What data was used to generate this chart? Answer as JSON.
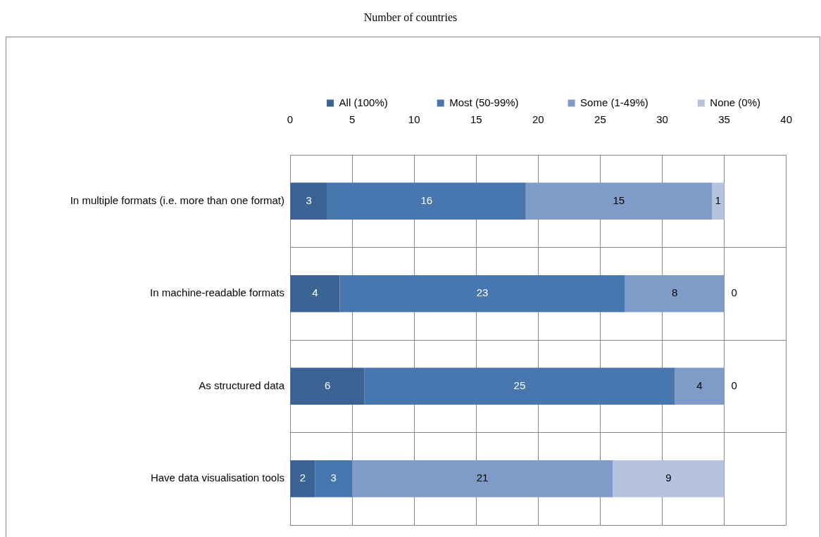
{
  "chart_data": {
    "type": "bar",
    "orientation": "horizontal",
    "stacked": true,
    "title": "Number of countries",
    "categories": [
      "In multiple formats (i.e. more than one format)",
      "In machine-readable formats",
      "As structured data",
      "Have data visualisation tools"
    ],
    "series": [
      {
        "name": "All (100%)",
        "color": "#3b6494",
        "values": [
          3,
          4,
          6,
          2
        ]
      },
      {
        "name": "Most (50-99%)",
        "color": "#4876ae",
        "values": [
          16,
          23,
          25,
          3
        ]
      },
      {
        "name": "Some (1-49%)",
        "color": "#7f9bc7",
        "values": [
          15,
          8,
          4,
          21
        ]
      },
      {
        "name": "None (0%)",
        "color": "#b5c3de",
        "values": [
          1,
          0,
          0,
          9
        ]
      }
    ],
    "xlim": [
      0,
      40
    ],
    "xticks": [
      0,
      5,
      10,
      15,
      20,
      25,
      30,
      35,
      40
    ],
    "grid": true,
    "legend": "top",
    "data_labels": true
  }
}
